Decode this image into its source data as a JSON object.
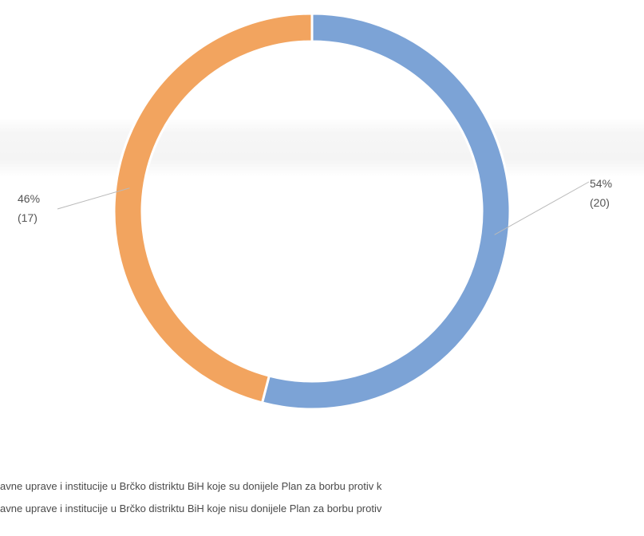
{
  "chart_data": {
    "type": "pie",
    "donut": true,
    "slices": [
      {
        "label": "avne uprave i institucije u Brčko distriktu BiH koje su donijele Plan za borbu protiv k",
        "value": 20,
        "percent": "54%",
        "count_label": "(20)",
        "color": "#7ca3d6"
      },
      {
        "label": "avne uprave i institucije u Brčko distriktu BiH koje nisu donijele Plan za borbu protiv",
        "value": 17,
        "percent": "46%",
        "count_label": "(17)",
        "color": "#f2a45f"
      }
    ],
    "legend_position": "bottom",
    "title": ""
  }
}
